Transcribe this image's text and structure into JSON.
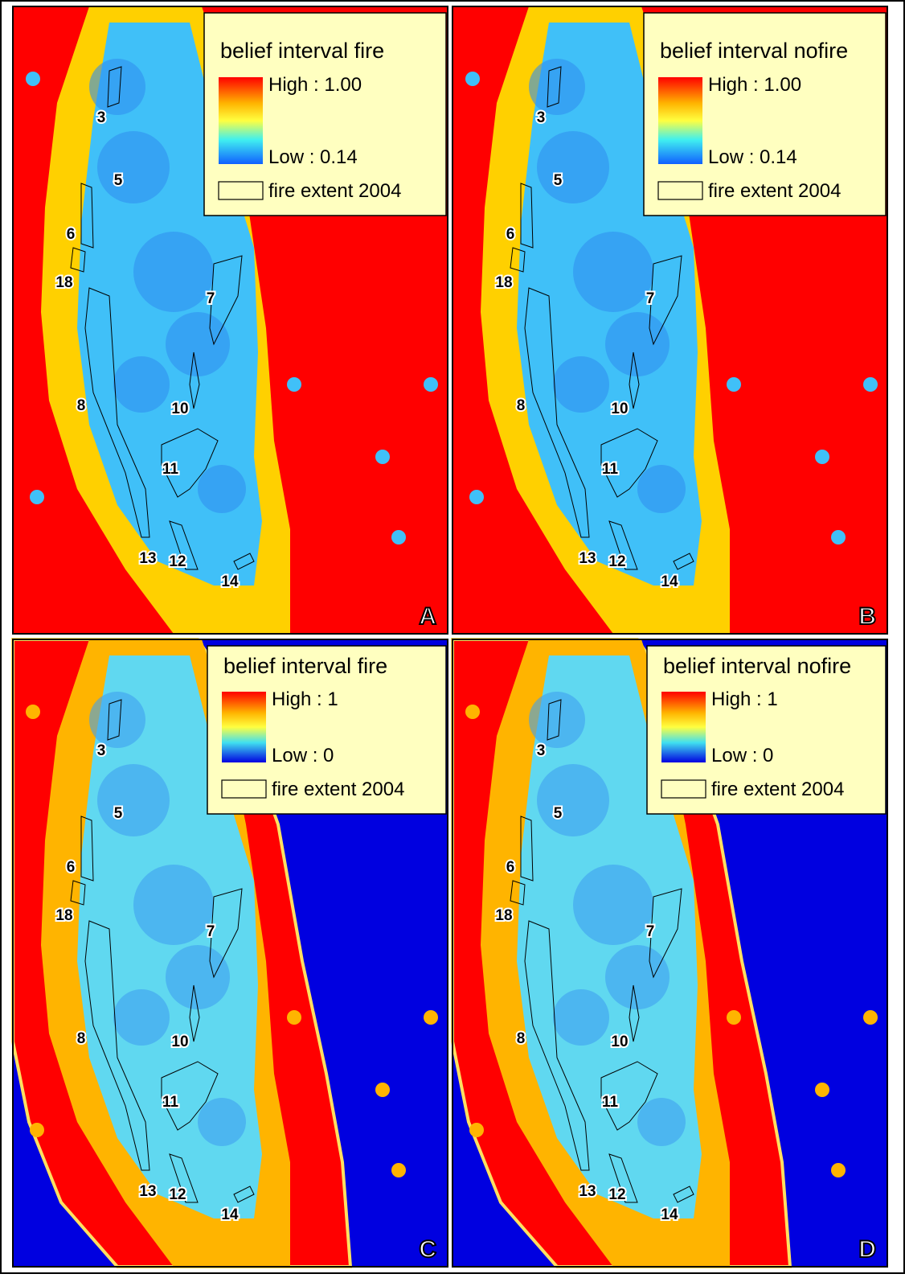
{
  "panels": [
    {
      "letter": "A",
      "legend": {
        "title": "belief interval fire",
        "high": "High : 1.00",
        "low": "Low : 0.14",
        "outline": "fire extent 2004"
      },
      "labels": [
        "3",
        "5",
        "6",
        "18",
        "7",
        "8",
        "10",
        "11",
        "13",
        "12",
        "14"
      ]
    },
    {
      "letter": "B",
      "legend": {
        "title": "belief interval nofire",
        "high": "High : 1.00",
        "low": "Low : 0.14",
        "outline": "fire extent 2004"
      },
      "labels": [
        "3",
        "5",
        "6",
        "18",
        "7",
        "8",
        "10",
        "11",
        "13",
        "12",
        "14"
      ]
    },
    {
      "letter": "C",
      "legend": {
        "title": "belief interval fire",
        "high": "High : 1",
        "low": "Low : 0",
        "outline": "fire extent 2004"
      },
      "labels": [
        "3",
        "5",
        "6",
        "18",
        "7",
        "8",
        "10",
        "11",
        "13",
        "12",
        "14"
      ]
    },
    {
      "letter": "D",
      "legend": {
        "title": "belief interval nofire",
        "high": "High : 1",
        "low": "Low : 0",
        "outline": "fire extent 2004"
      },
      "labels": [
        "3",
        "5",
        "6",
        "18",
        "7",
        "8",
        "10",
        "11",
        "13",
        "12",
        "14"
      ]
    }
  ]
}
